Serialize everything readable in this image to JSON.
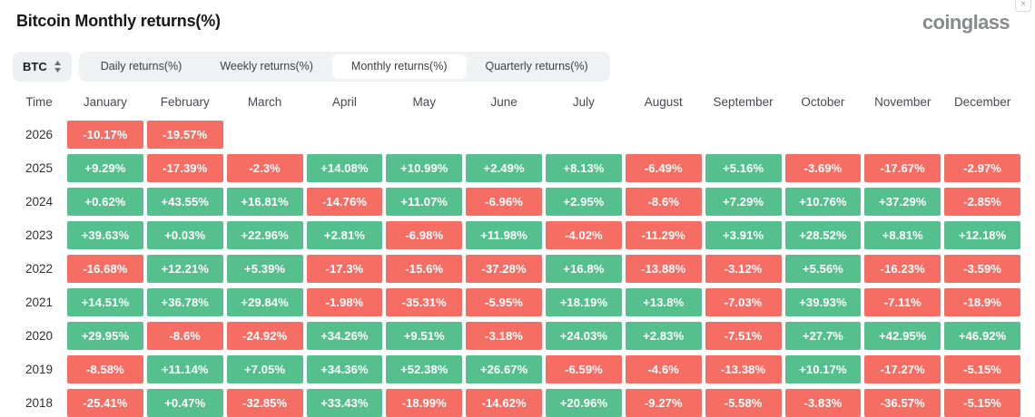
{
  "header": {
    "title": "Bitcoin Monthly returns(%)",
    "logo_text": "coinglass",
    "corner_icon_glyph": "×"
  },
  "controls": {
    "symbol": "BTC",
    "tabs": [
      {
        "id": "daily",
        "label": "Daily returns(%)",
        "active": false
      },
      {
        "id": "weekly",
        "label": "Weekly returns(%)",
        "active": false
      },
      {
        "id": "monthly",
        "label": "Monthly returns(%)",
        "active": true
      },
      {
        "id": "quarterly",
        "label": "Quarterly returns(%)",
        "active": false
      }
    ]
  },
  "table": {
    "time_label": "Time"
  },
  "colors": {
    "positive": "#56bf8e",
    "negative": "#f66d64"
  },
  "chart_data": {
    "type": "heatmap",
    "title": "Bitcoin Monthly returns(%)",
    "unit": "%",
    "columns": [
      "January",
      "February",
      "March",
      "April",
      "May",
      "June",
      "July",
      "August",
      "September",
      "October",
      "November",
      "December"
    ],
    "rows": [
      "2026",
      "2025",
      "2024",
      "2023",
      "2022",
      "2021",
      "2020",
      "2019",
      "2018"
    ],
    "values": [
      [
        -10.17,
        -19.57,
        null,
        null,
        null,
        null,
        null,
        null,
        null,
        null,
        null,
        null
      ],
      [
        9.29,
        -17.39,
        -2.3,
        14.08,
        10.99,
        2.49,
        8.13,
        -6.49,
        5.16,
        -3.69,
        -17.67,
        -2.97
      ],
      [
        0.62,
        43.55,
        16.81,
        -14.76,
        11.07,
        -6.96,
        2.95,
        -8.6,
        7.29,
        10.76,
        37.29,
        -2.85
      ],
      [
        39.63,
        0.03,
        22.96,
        2.81,
        -6.98,
        11.98,
        -4.02,
        -11.29,
        3.91,
        28.52,
        8.81,
        12.18
      ],
      [
        -16.68,
        12.21,
        5.39,
        -17.3,
        -15.6,
        -37.28,
        16.8,
        -13.88,
        -3.12,
        5.56,
        -16.23,
        -3.59
      ],
      [
        14.51,
        36.78,
        29.84,
        -1.98,
        -35.31,
        -5.95,
        18.19,
        13.8,
        -7.03,
        39.93,
        -7.11,
        -18.9
      ],
      [
        29.95,
        -8.6,
        -24.92,
        34.26,
        9.51,
        -3.18,
        24.03,
        2.83,
        -7.51,
        27.7,
        42.95,
        46.92
      ],
      [
        -8.58,
        11.14,
        7.05,
        34.36,
        52.38,
        26.67,
        -6.59,
        -4.6,
        -13.38,
        10.17,
        -17.27,
        -5.15
      ],
      [
        -25.41,
        0.47,
        -32.85,
        33.43,
        -18.99,
        -14.62,
        20.96,
        -9.27,
        -5.58,
        -3.83,
        -36.57,
        -5.15
      ]
    ]
  }
}
